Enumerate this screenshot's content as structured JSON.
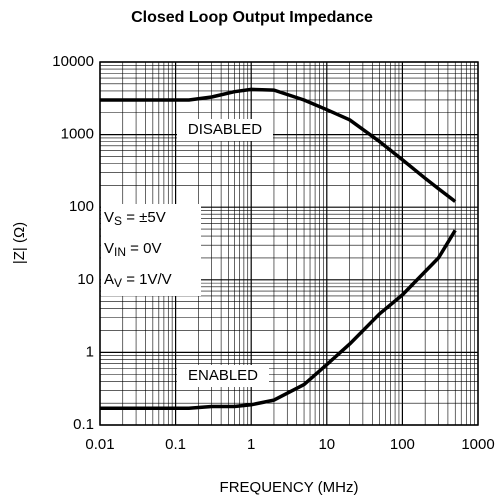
{
  "chart_data": {
    "type": "line",
    "title": "Closed Loop Output Impedance",
    "xlabel": "FREQUENCY (MHz)",
    "ylabel": "|Z| (Ω)",
    "xlog": true,
    "ylog": true,
    "grid": true,
    "x": [
      0.01,
      0.05,
      0.15,
      0.3,
      0.6,
      1,
      2,
      5,
      10,
      20,
      50,
      100,
      200,
      300,
      500
    ],
    "series": [
      {
        "name": "DISABLED",
        "color": "#000000",
        "values": [
          3000,
          3000,
          3000,
          3300,
          3900,
          4200,
          4100,
          3000,
          2200,
          1600,
          800,
          450,
          250,
          180,
          120
        ]
      },
      {
        "name": "ENABLED",
        "color": "#000000",
        "values": [
          0.17,
          0.17,
          0.17,
          0.18,
          0.18,
          0.19,
          0.22,
          0.36,
          0.68,
          1.3,
          3.4,
          6.2,
          13,
          20,
          48
        ]
      }
    ],
    "conditions": [
      {
        "symbol": "V",
        "subscript": "S",
        "value": " = ±5V"
      },
      {
        "symbol": "V",
        "subscript": "IN",
        "value": " = 0V"
      },
      {
        "symbol": "A",
        "subscript": "V",
        "value": " = 1V/V"
      }
    ],
    "xlim": [
      0.01,
      1000
    ],
    "ylim": [
      0.1,
      10000
    ],
    "xticks": [
      0.01,
      0.1,
      1,
      10,
      100,
      1000
    ],
    "yticks": [
      0.1,
      1,
      10,
      100,
      1000,
      10000
    ]
  }
}
